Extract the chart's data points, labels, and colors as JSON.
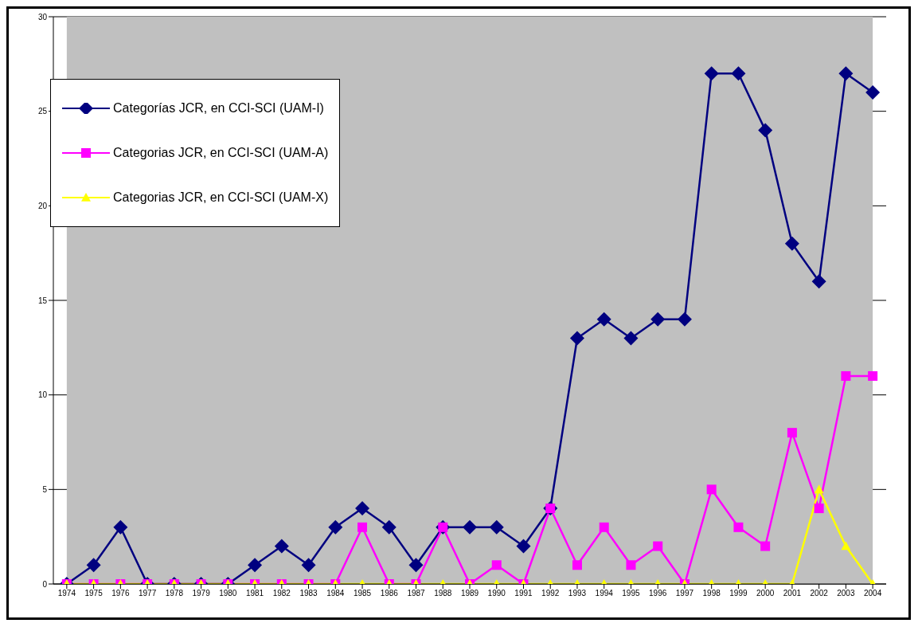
{
  "chart_data": {
    "type": "line",
    "categories": [
      "1974",
      "1975",
      "1976",
      "1977",
      "1978",
      "1979",
      "1980",
      "1981",
      "1982",
      "1983",
      "1984",
      "1985",
      "1986",
      "1987",
      "1988",
      "1989",
      "1990",
      "1991",
      "1992",
      "1993",
      "1994",
      "1995",
      "1996",
      "1997",
      "1998",
      "1999",
      "2000",
      "2001",
      "2002",
      "2003",
      "2004"
    ],
    "series": [
      {
        "name": "Categorías JCR, en CCI-SCI (UAM-I)",
        "color": "#000080",
        "marker": "diamond",
        "values": [
          0,
          1,
          3,
          0,
          0,
          0,
          0,
          1,
          2,
          1,
          3,
          4,
          3,
          1,
          3,
          3,
          3,
          2,
          4,
          13,
          14,
          13,
          14,
          14,
          27,
          27,
          24,
          18,
          16,
          27,
          26
        ]
      },
      {
        "name": "Categorias JCR, en CCI-SCI (UAM-A)",
        "color": "#ff00ff",
        "marker": "square",
        "values": [
          0,
          0,
          0,
          0,
          0,
          0,
          0,
          0,
          0,
          0,
          0,
          3,
          0,
          0,
          3,
          0,
          1,
          0,
          4,
          1,
          3,
          1,
          2,
          0,
          5,
          3,
          2,
          8,
          4,
          11,
          11
        ]
      },
      {
        "name": "Categorias JCR, en CCI-SCI (UAM-X)",
        "color": "#ffff00",
        "marker": "triangle",
        "values": [
          0,
          0,
          0,
          0,
          0,
          0,
          0,
          0,
          0,
          0,
          0,
          0,
          0,
          0,
          0,
          0,
          0,
          0,
          0,
          0,
          0,
          0,
          0,
          0,
          0,
          0,
          0,
          0,
          5,
          2,
          0
        ]
      }
    ],
    "ylim": [
      0,
      30
    ],
    "yticks": [
      0,
      5,
      10,
      15,
      20,
      25,
      30
    ],
    "grid": "y",
    "legend": "top left"
  }
}
